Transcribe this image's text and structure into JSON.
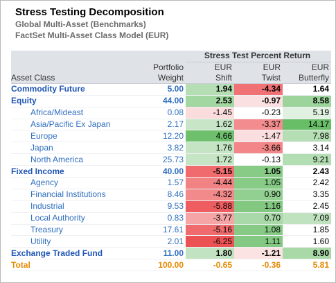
{
  "header": {
    "title": "Stress Testing Decomposition",
    "subtitle1": "Global Multi-Asset (Benchmarks)",
    "subtitle2": "FactSet Multi-Asset Class Model (EUR)"
  },
  "table": {
    "group_header": "Stress Test Percent Return",
    "columns": {
      "asset_class": "Asset Class",
      "weight": [
        "Portfolio",
        "Weight"
      ],
      "shift": [
        "EUR",
        "Shift"
      ],
      "twist": [
        "EUR",
        "Twist"
      ],
      "butterfly": [
        "EUR",
        "Butterfly"
      ]
    },
    "rows": [
      {
        "label": "Commodity Future",
        "level": 1,
        "weight": "5.00",
        "shift": "1.94",
        "twist": "-4.34",
        "butterfly": "1.64",
        "shift_bg": "#b5deb4",
        "twist_bg": "#f17274",
        "butterfly_bg": "#ffffff"
      },
      {
        "label": "Equity",
        "level": 1,
        "weight": "44.00",
        "shift": "2.53",
        "twist": "-0.97",
        "butterfly": "8.58",
        "shift_bg": "#a3d7a2",
        "twist_bg": "#fbe0e1",
        "butterfly_bg": "#9dd49c"
      },
      {
        "label": "Africa/Mideast",
        "level": 2,
        "weight": "0.08",
        "shift": "-1.45",
        "twist": "-0.23",
        "butterfly": "5.19",
        "shift_bg": "#fbdcdd",
        "twist_bg": "#ffffff",
        "butterfly_bg": "#e1f1e1"
      },
      {
        "label": "Asia/Pacific Ex Japan",
        "level": 2,
        "weight": "2.17",
        "shift": "1.62",
        "twist": "-3.37",
        "butterfly": "14.17",
        "shift_bg": "#c8e6c7",
        "twist_bg": "#f38c8e",
        "butterfly_bg": "#68bd67"
      },
      {
        "label": "Europe",
        "level": 2,
        "weight": "12.20",
        "shift": "4.66",
        "twist": "-1.47",
        "butterfly": "7.98",
        "shift_bg": "#6ec06d",
        "twist_bg": "#fbdedf",
        "butterfly_bg": "#b6deb5"
      },
      {
        "label": "Japan",
        "level": 2,
        "weight": "3.82",
        "shift": "1.76",
        "twist": "-3.66",
        "butterfly": "3.14",
        "shift_bg": "#c4e4c3",
        "twist_bg": "#f38688",
        "butterfly_bg": "#ffffff"
      },
      {
        "label": "North America",
        "level": 2,
        "weight": "25.73",
        "shift": "1.72",
        "twist": "-0.13",
        "butterfly": "9.21",
        "shift_bg": "#c6e5c5",
        "twist_bg": "#ffffff",
        "butterfly_bg": "#b3ddb2"
      },
      {
        "label": "Fixed Income",
        "level": 1,
        "weight": "40.00",
        "shift": "-5.15",
        "twist": "1.05",
        "butterfly": "2.43",
        "shift_bg": "#f06b6d",
        "twist_bg": "#88cb87",
        "butterfly_bg": "#ffffff"
      },
      {
        "label": "Agency",
        "level": 2,
        "weight": "1.57",
        "shift": "-4.44",
        "twist": "1.05",
        "butterfly": "2.42",
        "shift_bg": "#f28385",
        "twist_bg": "#88cb87",
        "butterfly_bg": "#ffffff"
      },
      {
        "label": "Financial Institutions",
        "level": 2,
        "weight": "8.46",
        "shift": "-4.32",
        "twist": "0.90",
        "butterfly": "3.35",
        "shift_bg": "#f2898b",
        "twist_bg": "#92d091",
        "butterfly_bg": "#ffffff"
      },
      {
        "label": "Industrial",
        "level": 2,
        "weight": "9.53",
        "shift": "-5.88",
        "twist": "1.16",
        "butterfly": "2.45",
        "shift_bg": "#ee5e60",
        "twist_bg": "#82c881",
        "butterfly_bg": "#ffffff"
      },
      {
        "label": "Local Authority",
        "level": 2,
        "weight": "0.83",
        "shift": "-3.77",
        "twist": "0.70",
        "butterfly": "7.09",
        "shift_bg": "#f5a5a6",
        "twist_bg": "#a9d9a8",
        "butterfly_bg": "#c0e2bf"
      },
      {
        "label": "Treasury",
        "level": 2,
        "weight": "17.61",
        "shift": "-5.16",
        "twist": "1.08",
        "butterfly": "1.85",
        "shift_bg": "#f06b6d",
        "twist_bg": "#86ca85",
        "butterfly_bg": "#ffffff"
      },
      {
        "label": "Utility",
        "level": 2,
        "weight": "2.01",
        "shift": "-6.25",
        "twist": "1.11",
        "butterfly": "1.60",
        "shift_bg": "#ec5254",
        "twist_bg": "#84c983",
        "butterfly_bg": "#ffffff"
      },
      {
        "label": "Exchange Traded Fund",
        "level": 1,
        "weight": "11.00",
        "shift": "1.80",
        "twist": "-1.21",
        "butterfly": "8.90",
        "shift_bg": "#c2e3c1",
        "twist_bg": "#fbe2e3",
        "butterfly_bg": "#a8d9a7"
      },
      {
        "label": "Total",
        "level": 0,
        "weight": "100.00",
        "shift": "-0.65",
        "twist": "-0.36",
        "butterfly": "5.81",
        "shift_bg": "#ffffff",
        "twist_bg": "#ffffff",
        "butterfly_bg": "#ffffff"
      }
    ]
  }
}
